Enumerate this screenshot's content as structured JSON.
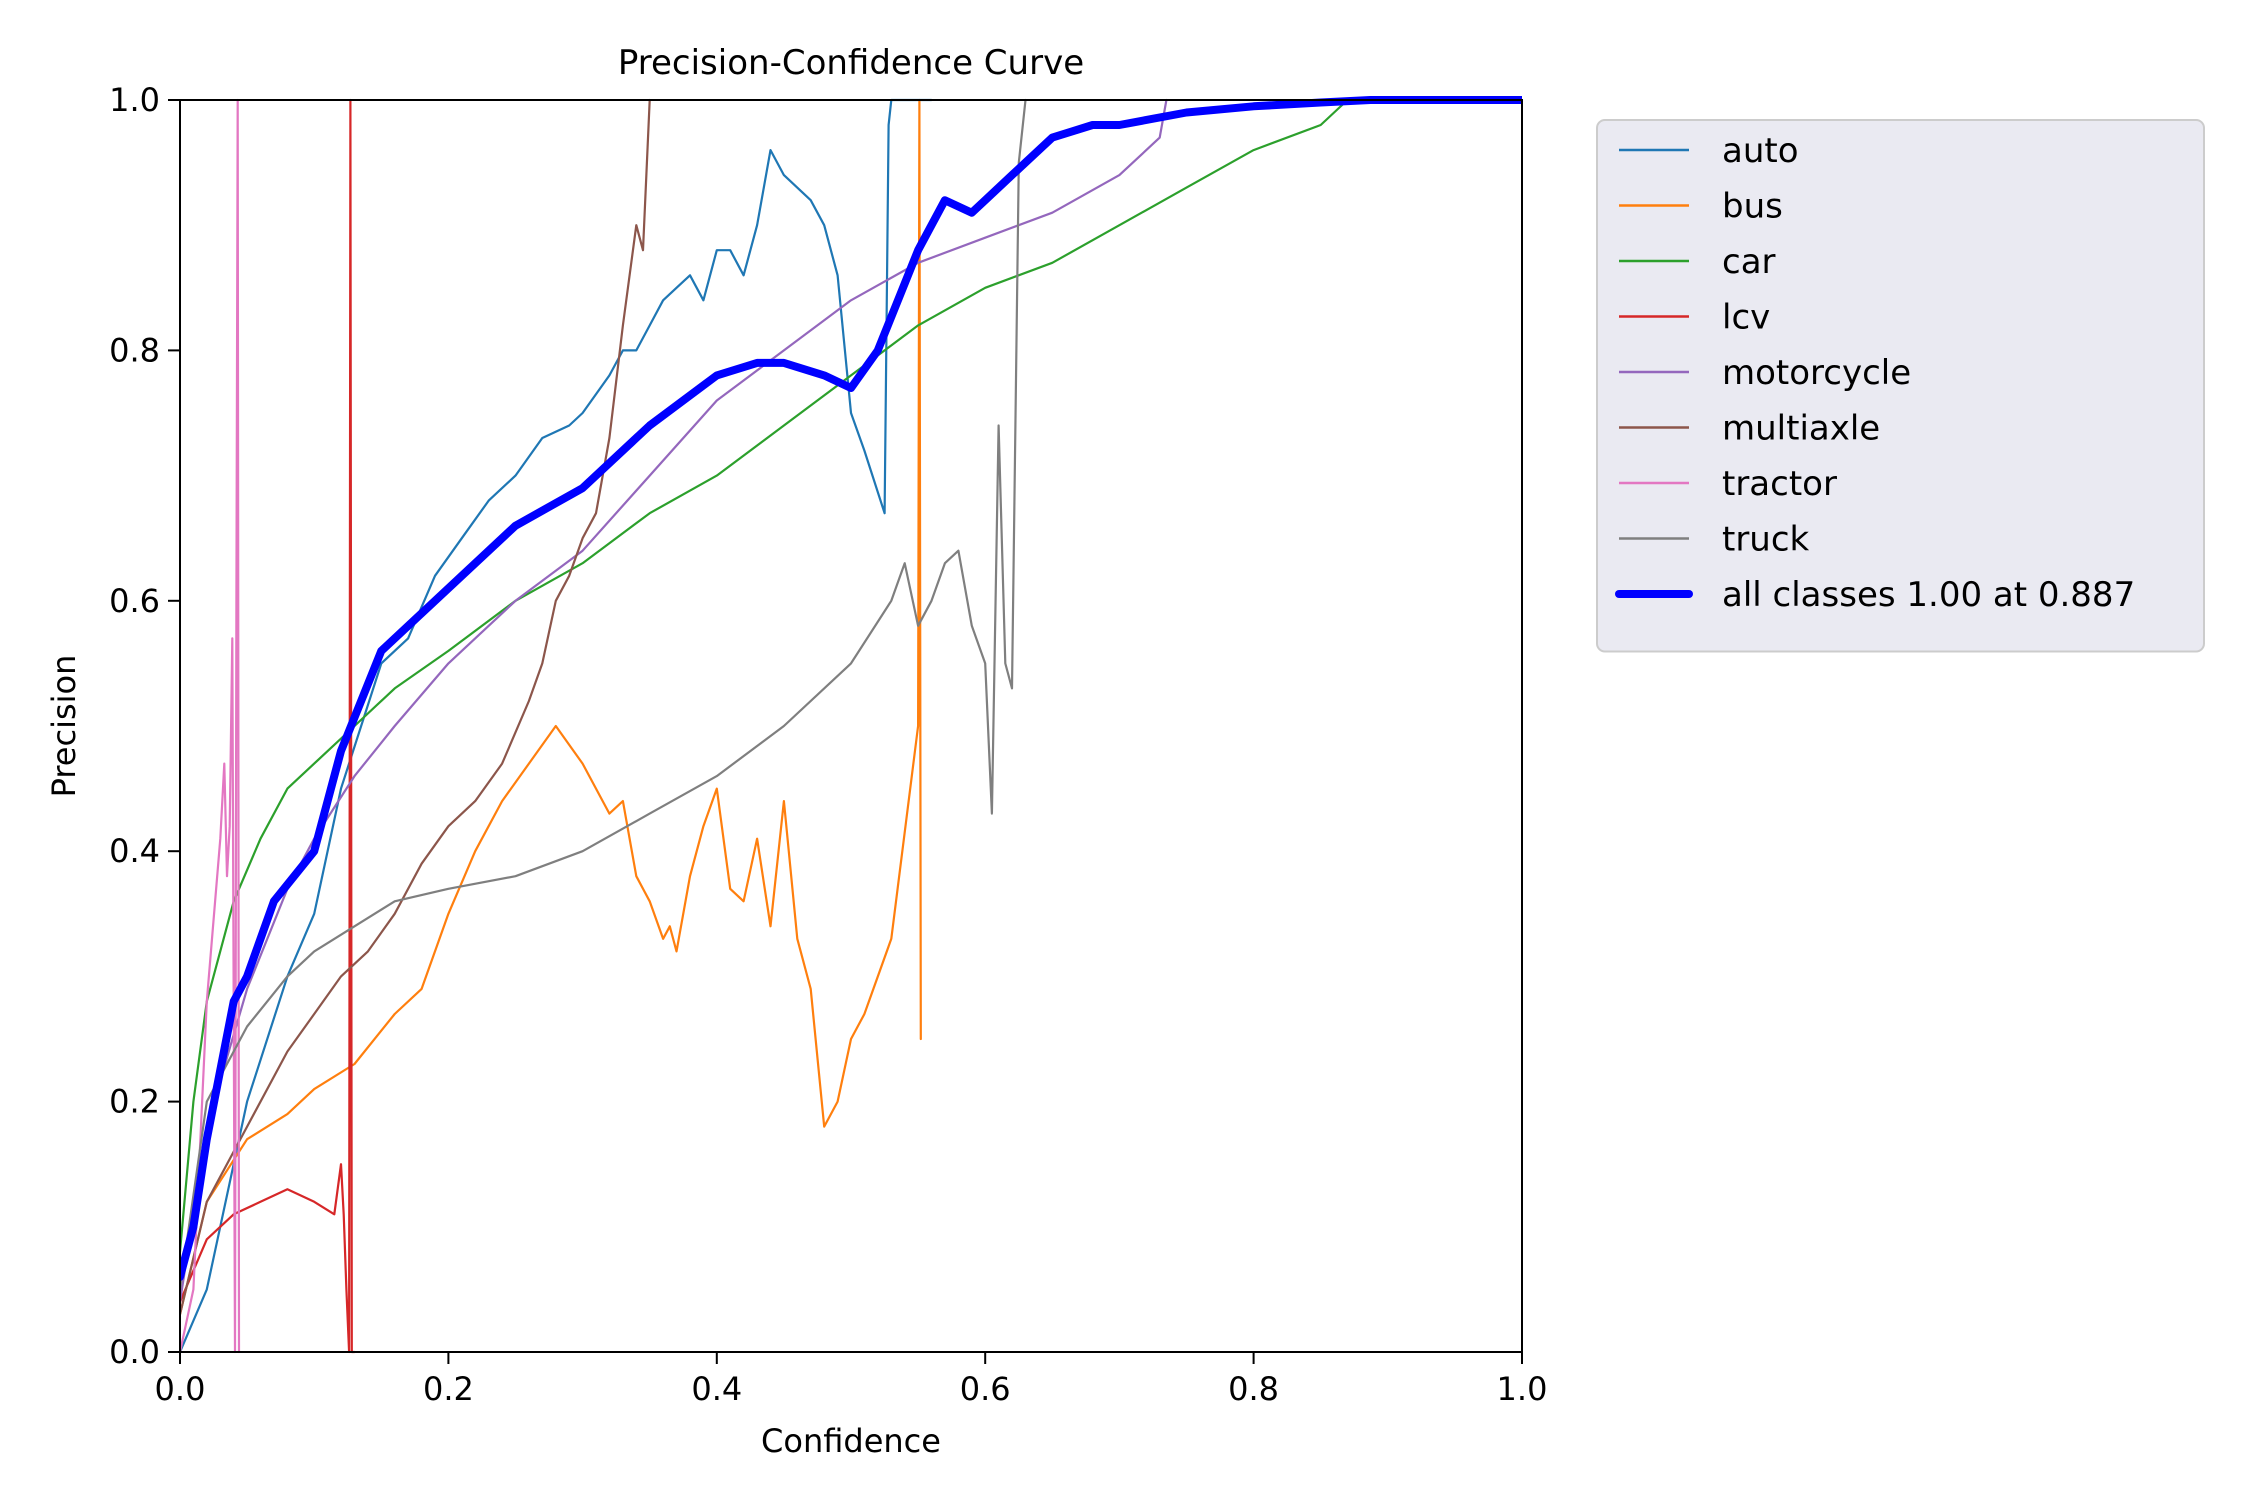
{
  "chart_data": {
    "type": "line",
    "title": "Precision-Confidence Curve",
    "xlabel": "Confidence",
    "ylabel": "Precision",
    "xlim": [
      0.0,
      1.0
    ],
    "ylim": [
      0.0,
      1.0
    ],
    "xticks": [
      "0.0",
      "0.2",
      "0.4",
      "0.6",
      "0.8",
      "1.0"
    ],
    "yticks": [
      "0.0",
      "0.2",
      "0.4",
      "0.6",
      "0.8",
      "1.0"
    ],
    "grid": false,
    "legend_position": "outside-top-right",
    "series": [
      {
        "name": "auto",
        "color": "#1f77b4",
        "x": [
          0.0,
          0.02,
          0.05,
          0.08,
          0.1,
          0.12,
          0.15,
          0.17,
          0.19,
          0.21,
          0.23,
          0.25,
          0.27,
          0.29,
          0.3,
          0.32,
          0.33,
          0.34,
          0.35,
          0.36,
          0.37,
          0.38,
          0.39,
          0.4,
          0.41,
          0.42,
          0.43,
          0.44,
          0.45,
          0.47,
          0.48,
          0.49,
          0.5,
          0.51,
          0.525,
          0.528,
          0.53,
          0.56
        ],
        "y": [
          0.0,
          0.05,
          0.2,
          0.3,
          0.35,
          0.45,
          0.55,
          0.57,
          0.62,
          0.65,
          0.68,
          0.7,
          0.73,
          0.74,
          0.75,
          0.78,
          0.8,
          0.8,
          0.82,
          0.84,
          0.85,
          0.86,
          0.84,
          0.88,
          0.88,
          0.86,
          0.9,
          0.96,
          0.94,
          0.92,
          0.9,
          0.86,
          0.75,
          0.72,
          0.67,
          0.98,
          1.0,
          1.0
        ]
      },
      {
        "name": "bus",
        "color": "#ff7f0e",
        "x": [
          0.0,
          0.02,
          0.05,
          0.08,
          0.1,
          0.13,
          0.16,
          0.18,
          0.2,
          0.22,
          0.24,
          0.26,
          0.28,
          0.3,
          0.32,
          0.33,
          0.34,
          0.35,
          0.36,
          0.365,
          0.37,
          0.38,
          0.39,
          0.4,
          0.41,
          0.42,
          0.43,
          0.44,
          0.45,
          0.46,
          0.47,
          0.48,
          0.49,
          0.5,
          0.51,
          0.53,
          0.55,
          0.551,
          0.552
        ],
        "y": [
          0.03,
          0.12,
          0.17,
          0.19,
          0.21,
          0.23,
          0.27,
          0.29,
          0.35,
          0.4,
          0.44,
          0.47,
          0.5,
          0.47,
          0.43,
          0.44,
          0.38,
          0.36,
          0.33,
          0.34,
          0.32,
          0.38,
          0.42,
          0.45,
          0.37,
          0.36,
          0.41,
          0.34,
          0.44,
          0.33,
          0.29,
          0.18,
          0.2,
          0.25,
          0.27,
          0.33,
          0.5,
          1.0,
          0.25
        ]
      },
      {
        "name": "car",
        "color": "#2ca02c",
        "x": [
          0.0,
          0.01,
          0.02,
          0.04,
          0.06,
          0.08,
          0.1,
          0.13,
          0.16,
          0.2,
          0.25,
          0.3,
          0.35,
          0.4,
          0.45,
          0.5,
          0.55,
          0.6,
          0.65,
          0.7,
          0.75,
          0.8,
          0.85,
          0.86,
          0.87,
          0.9,
          1.0
        ],
        "y": [
          0.08,
          0.2,
          0.28,
          0.36,
          0.41,
          0.45,
          0.47,
          0.5,
          0.53,
          0.56,
          0.6,
          0.63,
          0.67,
          0.7,
          0.74,
          0.78,
          0.82,
          0.85,
          0.87,
          0.9,
          0.93,
          0.96,
          0.98,
          0.99,
          1.0,
          1.0,
          1.0
        ]
      },
      {
        "name": "lcv",
        "color": "#d62728",
        "x": [
          0.0,
          0.02,
          0.04,
          0.06,
          0.08,
          0.1,
          0.115,
          0.12,
          0.122,
          0.124,
          0.126,
          0.127,
          0.128,
          0.13
        ],
        "y": [
          0.04,
          0.09,
          0.11,
          0.12,
          0.13,
          0.12,
          0.11,
          0.15,
          0.11,
          0.05,
          0.0,
          1.0,
          0.0,
          0.0
        ]
      },
      {
        "name": "motorcycle",
        "color": "#9467bd",
        "x": [
          0.0,
          0.02,
          0.05,
          0.08,
          0.1,
          0.13,
          0.16,
          0.2,
          0.25,
          0.3,
          0.35,
          0.4,
          0.45,
          0.5,
          0.55,
          0.6,
          0.65,
          0.7,
          0.73,
          0.735
        ],
        "y": [
          0.04,
          0.18,
          0.29,
          0.37,
          0.41,
          0.46,
          0.5,
          0.55,
          0.6,
          0.64,
          0.7,
          0.76,
          0.8,
          0.84,
          0.87,
          0.89,
          0.91,
          0.94,
          0.97,
          1.0
        ]
      },
      {
        "name": "multiaxle",
        "color": "#8c564b",
        "x": [
          0.0,
          0.02,
          0.05,
          0.08,
          0.1,
          0.12,
          0.14,
          0.16,
          0.18,
          0.2,
          0.22,
          0.24,
          0.26,
          0.27,
          0.28,
          0.29,
          0.3,
          0.31,
          0.32,
          0.33,
          0.34,
          0.345,
          0.35
        ],
        "y": [
          0.03,
          0.12,
          0.18,
          0.24,
          0.27,
          0.3,
          0.32,
          0.35,
          0.39,
          0.42,
          0.44,
          0.47,
          0.52,
          0.55,
          0.6,
          0.62,
          0.65,
          0.67,
          0.73,
          0.82,
          0.9,
          0.88,
          1.0
        ]
      },
      {
        "name": "tractor",
        "color": "#e377c2",
        "x": [
          0.0,
          0.01,
          0.02,
          0.03,
          0.033,
          0.035,
          0.037,
          0.039,
          0.041,
          0.042,
          0.043,
          0.044
        ],
        "y": [
          0.0,
          0.05,
          0.28,
          0.41,
          0.47,
          0.38,
          0.42,
          0.57,
          0.0,
          0.6,
          1.0,
          0.0
        ]
      },
      {
        "name": "truck",
        "color": "#7f7f7f",
        "x": [
          0.0,
          0.02,
          0.05,
          0.08,
          0.1,
          0.13,
          0.16,
          0.2,
          0.25,
          0.3,
          0.35,
          0.4,
          0.45,
          0.5,
          0.53,
          0.54,
          0.55,
          0.56,
          0.57,
          0.58,
          0.59,
          0.6,
          0.605,
          0.61,
          0.615,
          0.62,
          0.625,
          0.63
        ],
        "y": [
          0.05,
          0.2,
          0.26,
          0.3,
          0.32,
          0.34,
          0.36,
          0.37,
          0.38,
          0.4,
          0.43,
          0.46,
          0.5,
          0.55,
          0.6,
          0.63,
          0.58,
          0.6,
          0.63,
          0.64,
          0.58,
          0.55,
          0.43,
          0.74,
          0.55,
          0.53,
          0.95,
          1.0
        ]
      },
      {
        "name": "all classes 1.00 at 0.887",
        "color": "#0000ff",
        "bold": true,
        "x": [
          0.0,
          0.01,
          0.02,
          0.04,
          0.05,
          0.07,
          0.1,
          0.12,
          0.15,
          0.2,
          0.25,
          0.3,
          0.35,
          0.4,
          0.43,
          0.45,
          0.48,
          0.5,
          0.52,
          0.55,
          0.57,
          0.59,
          0.6,
          0.62,
          0.65,
          0.68,
          0.7,
          0.75,
          0.8,
          0.85,
          0.887,
          1.0
        ],
        "y": [
          0.06,
          0.1,
          0.17,
          0.28,
          0.3,
          0.36,
          0.4,
          0.48,
          0.56,
          0.61,
          0.66,
          0.69,
          0.74,
          0.78,
          0.79,
          0.79,
          0.78,
          0.77,
          0.8,
          0.88,
          0.92,
          0.91,
          0.92,
          0.94,
          0.97,
          0.98,
          0.98,
          0.99,
          0.995,
          0.998,
          1.0,
          1.0
        ]
      }
    ]
  }
}
